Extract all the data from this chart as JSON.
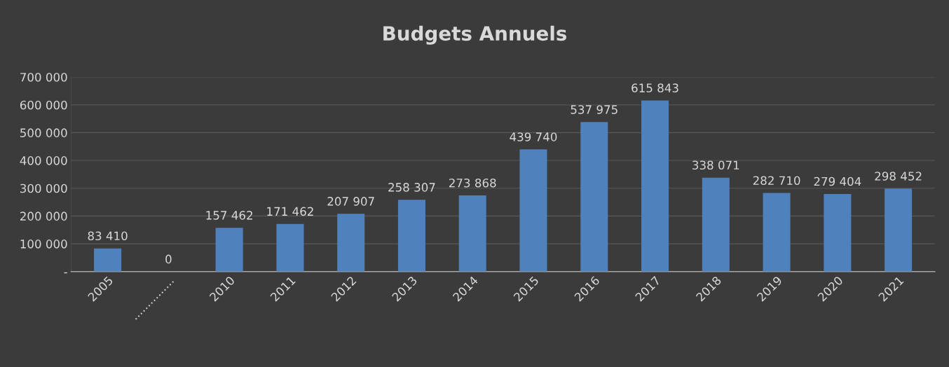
{
  "chart_data": {
    "type": "bar",
    "title": "Budgets Annuels",
    "categories": [
      "2005",
      "...............",
      "2010",
      "2011",
      "2012",
      "2013",
      "2014",
      "2015",
      "2016",
      "2017",
      "2018",
      "2019",
      "2020",
      "2021"
    ],
    "values": [
      83410,
      0,
      157462,
      171462,
      207907,
      258307,
      273868,
      439740,
      537975,
      615843,
      338071,
      282710,
      279404,
      298452
    ],
    "value_labels": [
      "83 410",
      "0",
      "157 462",
      "171 462",
      "207 907",
      "258 307",
      "273 868",
      "439 740",
      "537 975",
      "615 843",
      "338 071",
      "282 710",
      "279 404",
      "298 452"
    ],
    "color": "#4f81bd",
    "ylim": [
      0,
      700000
    ],
    "yticks": [
      {
        "value": 0,
        "label": "-"
      },
      {
        "value": 100000,
        "label": "100 000"
      },
      {
        "value": 200000,
        "label": "200 000"
      },
      {
        "value": 300000,
        "label": "300 000"
      },
      {
        "value": 400000,
        "label": "400 000"
      },
      {
        "value": 500000,
        "label": "500 000"
      },
      {
        "value": 600000,
        "label": "600 000"
      },
      {
        "value": 700000,
        "label": "700 000"
      }
    ],
    "grid": "y"
  }
}
